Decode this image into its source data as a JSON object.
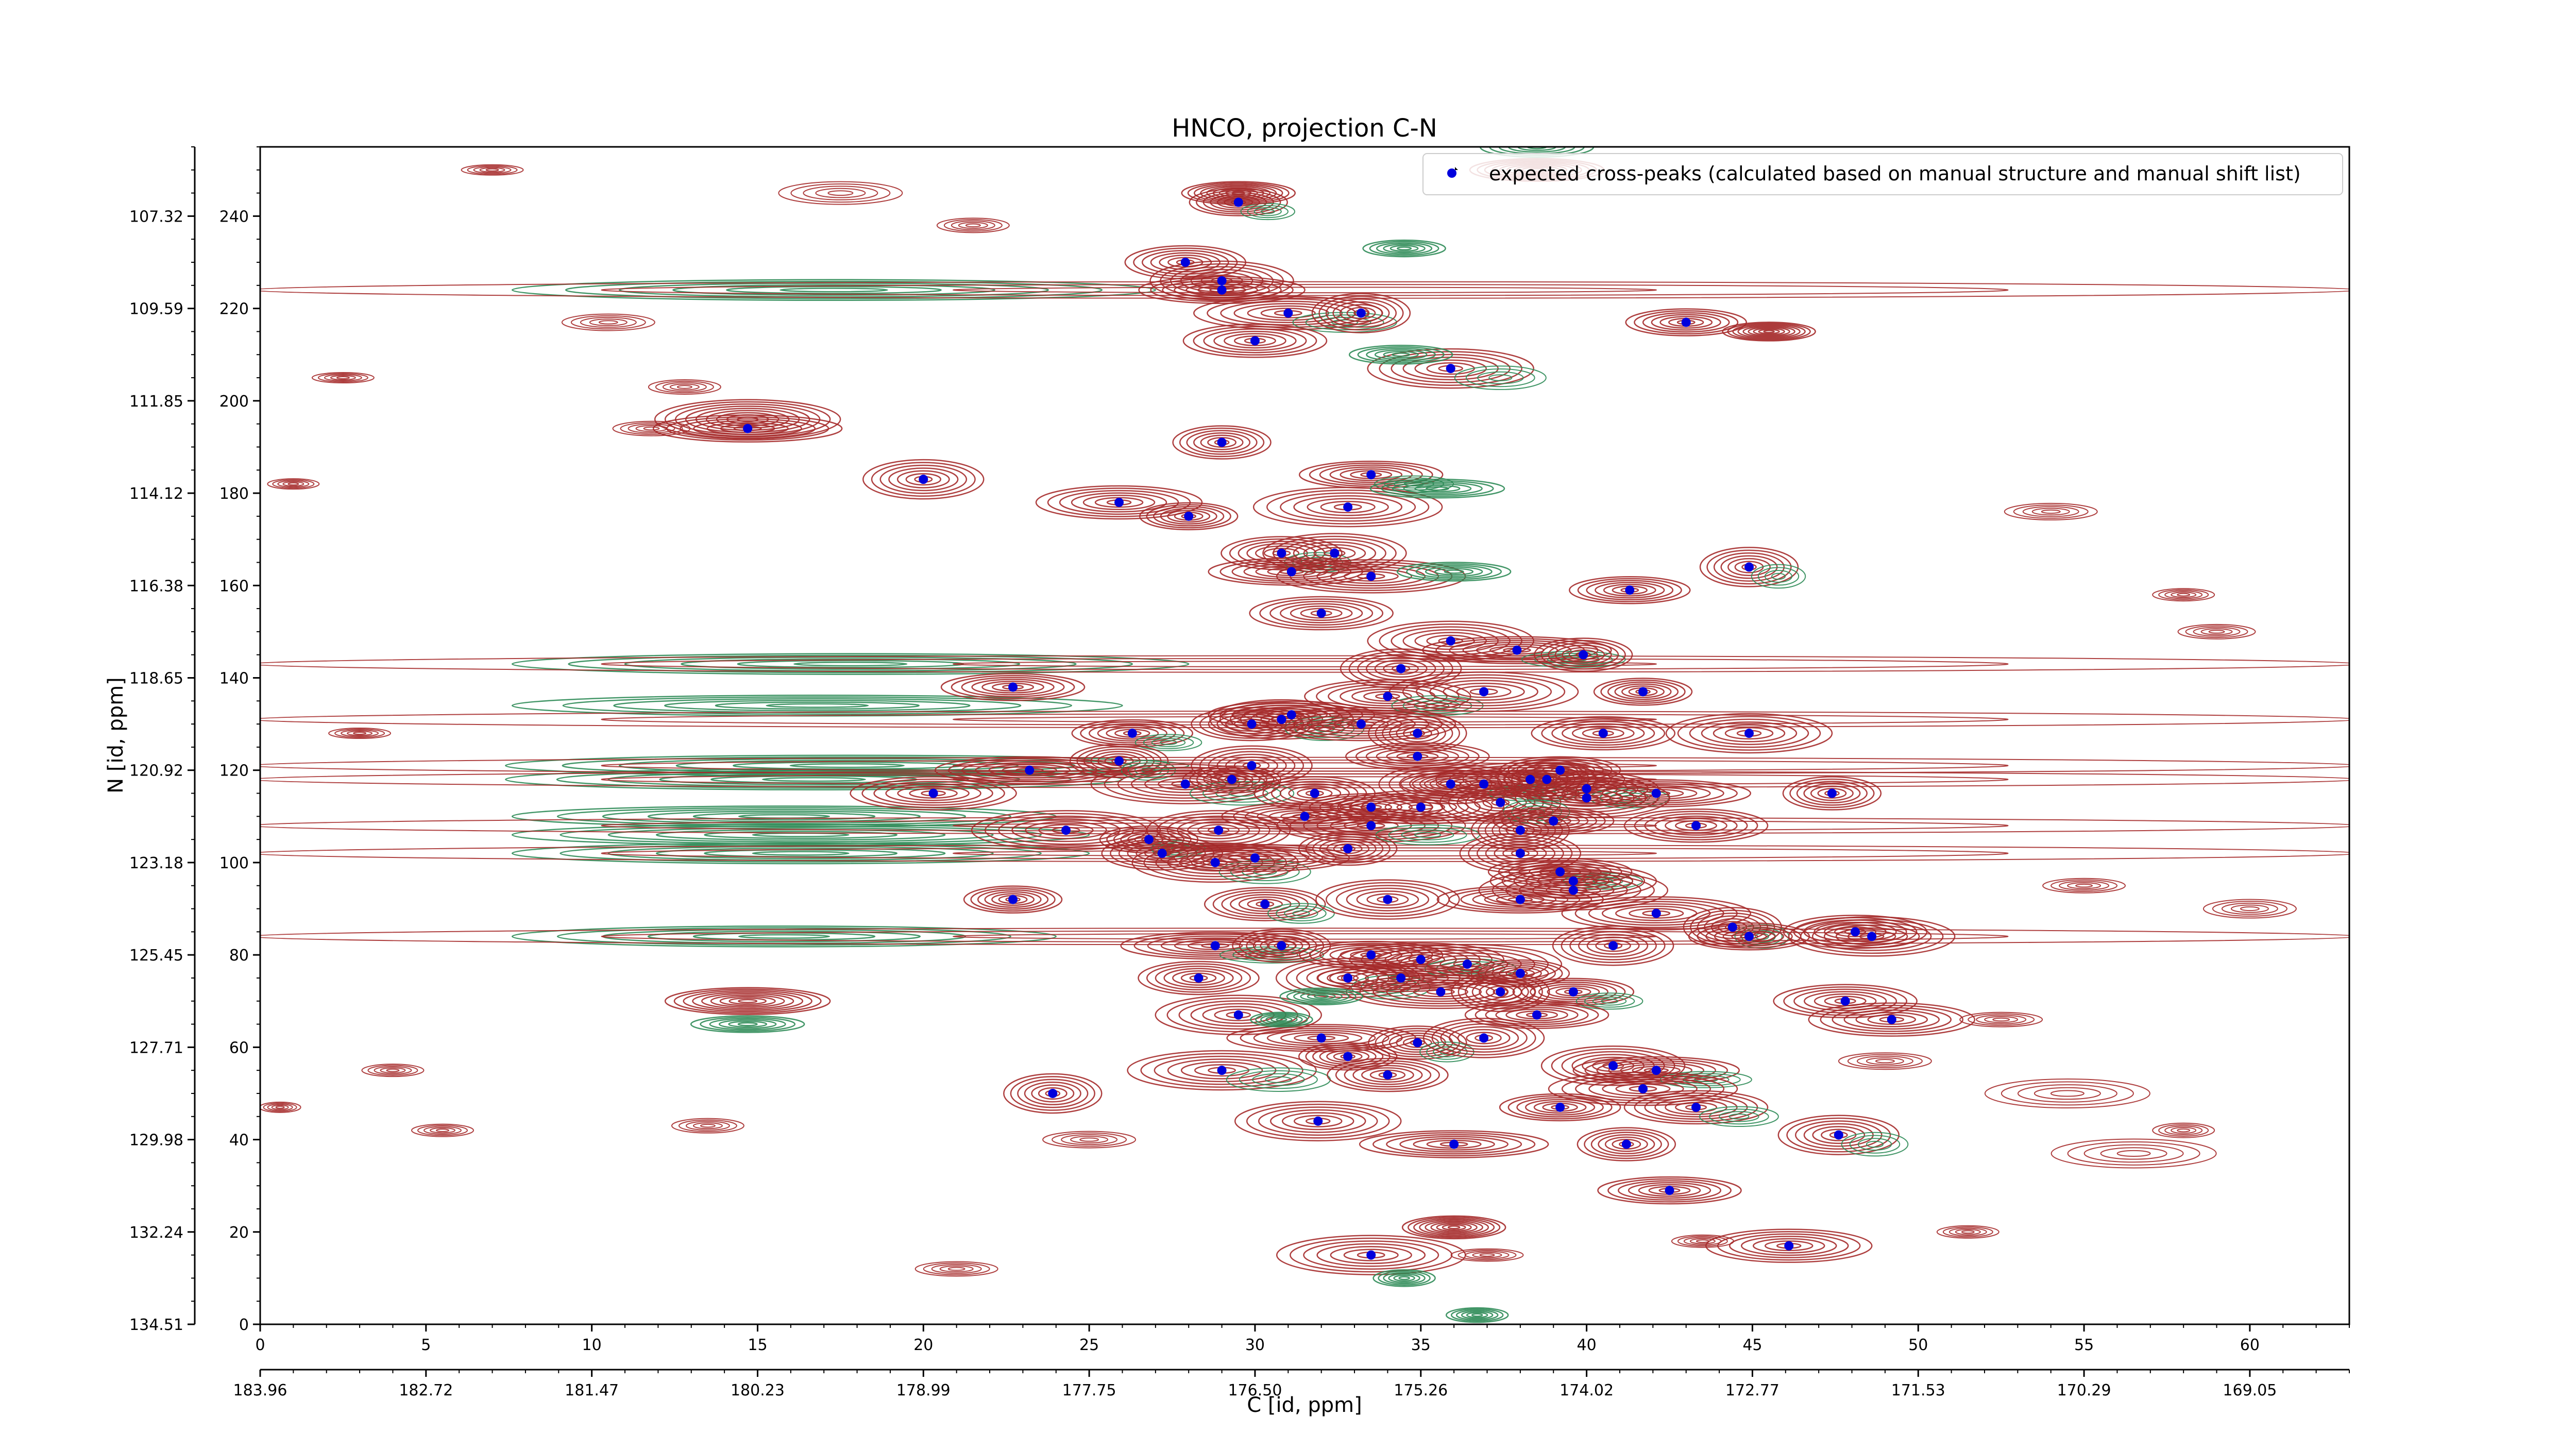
{
  "chart_data": {
    "type": "scatter",
    "title": "HNCO, projection C-N",
    "xlabel": "C [id, ppm]",
    "ylabel": "N [id, ppm]",
    "xlim": [
      0,
      63
    ],
    "ylim": [
      0,
      255
    ],
    "x_ticks": [
      0,
      5,
      10,
      15,
      20,
      25,
      30,
      35,
      40,
      45,
      50,
      55,
      60
    ],
    "y_ticks": [
      0,
      20,
      40,
      60,
      80,
      100,
      120,
      140,
      160,
      180,
      200,
      220,
      240
    ],
    "x_ppm_ticks": [
      "183.96",
      "182.72",
      "181.47",
      "180.23",
      "178.99",
      "177.75",
      "176.50",
      "175.26",
      "174.02",
      "172.77",
      "171.53",
      "170.29",
      "169.05"
    ],
    "y_ppm_ticks": [
      "134.51",
      "132.24",
      "129.98",
      "127.71",
      "125.45",
      "123.18",
      "120.92",
      "118.65",
      "116.38",
      "114.12",
      "111.85",
      "109.59",
      "107.32"
    ],
    "legend": {
      "label": "expected cross-peaks (calculated based on manual structure and manual shift list)",
      "position": "top-right"
    },
    "colors": {
      "peak": "#0000dd",
      "positive_contour": "#a52a2a",
      "negative_contour": "#2e8b57"
    },
    "series": [
      {
        "points": [
          [
            29.5,
            243
          ],
          [
            27.9,
            230
          ],
          [
            29.0,
            226
          ],
          [
            29.0,
            224
          ],
          [
            31.0,
            219
          ],
          [
            33.2,
            219
          ],
          [
            43.0,
            217
          ],
          [
            30.0,
            213
          ],
          [
            35.9,
            207
          ],
          [
            14.7,
            194
          ],
          [
            29.0,
            191
          ],
          [
            20.0,
            183
          ],
          [
            33.5,
            184
          ],
          [
            25.9,
            178
          ],
          [
            32.8,
            177
          ],
          [
            28.0,
            175
          ],
          [
            30.8,
            167
          ],
          [
            32.4,
            167
          ],
          [
            31.1,
            163
          ],
          [
            33.5,
            162
          ],
          [
            44.9,
            164
          ],
          [
            41.3,
            159
          ],
          [
            32.0,
            154
          ],
          [
            35.9,
            148
          ],
          [
            37.9,
            146
          ],
          [
            39.9,
            145
          ],
          [
            34.4,
            142
          ],
          [
            22.7,
            138
          ],
          [
            34.0,
            136
          ],
          [
            36.9,
            137
          ],
          [
            41.7,
            137
          ],
          [
            29.9,
            130
          ],
          [
            30.8,
            131
          ],
          [
            31.1,
            132
          ],
          [
            33.2,
            130
          ],
          [
            34.9,
            128
          ],
          [
            26.3,
            128
          ],
          [
            40.5,
            128
          ],
          [
            44.9,
            128
          ],
          [
            23.2,
            120
          ],
          [
            25.9,
            122
          ],
          [
            29.9,
            121
          ],
          [
            34.9,
            123
          ],
          [
            20.3,
            115
          ],
          [
            27.9,
            117
          ],
          [
            29.3,
            118
          ],
          [
            31.8,
            115
          ],
          [
            35.9,
            117
          ],
          [
            36.9,
            117
          ],
          [
            38.3,
            118
          ],
          [
            38.8,
            118
          ],
          [
            39.2,
            120
          ],
          [
            40.0,
            116
          ],
          [
            40.0,
            114
          ],
          [
            42.1,
            115
          ],
          [
            47.4,
            115
          ],
          [
            37.4,
            113
          ],
          [
            33.5,
            112
          ],
          [
            35.0,
            112
          ],
          [
            24.3,
            107
          ],
          [
            26.8,
            105
          ],
          [
            27.2,
            102
          ],
          [
            28.9,
            107
          ],
          [
            31.5,
            110
          ],
          [
            33.5,
            108
          ],
          [
            38.0,
            107
          ],
          [
            39.0,
            109
          ],
          [
            43.3,
            108
          ],
          [
            28.8,
            100
          ],
          [
            30.0,
            101
          ],
          [
            32.8,
            103
          ],
          [
            38.0,
            102
          ],
          [
            39.2,
            98
          ],
          [
            39.6,
            96
          ],
          [
            39.6,
            94
          ],
          [
            22.7,
            92
          ],
          [
            30.3,
            91
          ],
          [
            34.0,
            92
          ],
          [
            38.0,
            92
          ],
          [
            42.1,
            89
          ],
          [
            44.4,
            86
          ],
          [
            44.9,
            84
          ],
          [
            48.1,
            85
          ],
          [
            48.6,
            84
          ],
          [
            28.8,
            82
          ],
          [
            30.8,
            82
          ],
          [
            40.8,
            82
          ],
          [
            33.5,
            80
          ],
          [
            35.0,
            79
          ],
          [
            36.4,
            78
          ],
          [
            38.0,
            76
          ],
          [
            28.3,
            75
          ],
          [
            32.8,
            75
          ],
          [
            34.4,
            75
          ],
          [
            35.6,
            72
          ],
          [
            37.4,
            72
          ],
          [
            39.6,
            72
          ],
          [
            47.8,
            70
          ],
          [
            29.5,
            67
          ],
          [
            32.0,
            62
          ],
          [
            34.9,
            61
          ],
          [
            36.9,
            62
          ],
          [
            38.5,
            67
          ],
          [
            49.2,
            66
          ],
          [
            29.0,
            55
          ],
          [
            32.8,
            58
          ],
          [
            34.0,
            54
          ],
          [
            40.8,
            56
          ],
          [
            42.1,
            55
          ],
          [
            41.7,
            51
          ],
          [
            23.9,
            50
          ],
          [
            39.2,
            47
          ],
          [
            43.3,
            47
          ],
          [
            31.9,
            44
          ],
          [
            36.0,
            39
          ],
          [
            41.2,
            39
          ],
          [
            47.6,
            41
          ],
          [
            42.5,
            29
          ],
          [
            46.1,
            17
          ],
          [
            33.5,
            15
          ]
        ]
      }
    ]
  }
}
